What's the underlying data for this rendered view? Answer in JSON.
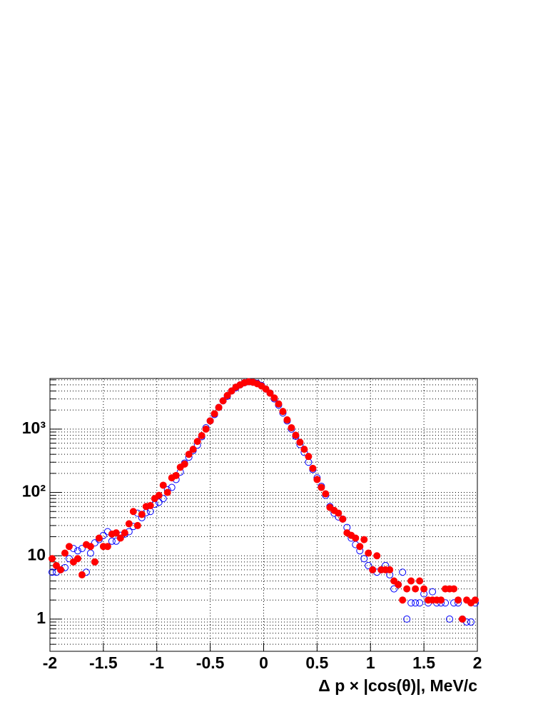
{
  "chart_data": {
    "type": "scatter",
    "x_label": "Δ p × |cos(θ)|, MeV/c",
    "xlim": [
      -2,
      2
    ],
    "xticks": [
      -2,
      -1.5,
      -1,
      -0.5,
      0,
      0.5,
      1,
      1.5,
      2
    ],
    "ylim": [
      0.31,
      6300
    ],
    "log_y": true,
    "yticks": [
      1,
      10,
      {
        "value": 100,
        "label": "10²"
      },
      {
        "value": 1000,
        "label": "10³"
      }
    ],
    "y_minor_ticks": [
      0.4,
      0.5,
      0.6,
      0.7,
      0.8,
      0.9,
      2,
      3,
      4,
      5,
      6,
      7,
      8,
      9,
      20,
      30,
      40,
      50,
      60,
      70,
      80,
      90,
      200,
      300,
      400,
      500,
      600,
      700,
      800,
      900,
      2000,
      3000,
      4000,
      5000,
      6000
    ],
    "grid": true,
    "x": [
      -1.98,
      -1.94,
      -1.9,
      -1.86,
      -1.82,
      -1.78,
      -1.74,
      -1.7,
      -1.66,
      -1.62,
      -1.58,
      -1.54,
      -1.5,
      -1.46,
      -1.42,
      -1.38,
      -1.34,
      -1.3,
      -1.26,
      -1.22,
      -1.18,
      -1.14,
      -1.1,
      -1.06,
      -1.02,
      -0.98,
      -0.94,
      -0.9,
      -0.86,
      -0.82,
      -0.78,
      -0.74,
      -0.7,
      -0.66,
      -0.62,
      -0.58,
      -0.54,
      -0.5,
      -0.46,
      -0.42,
      -0.38,
      -0.34,
      -0.3,
      -0.26,
      -0.22,
      -0.18,
      -0.14,
      -0.1,
      -0.06,
      -0.02,
      0.02,
      0.06,
      0.1,
      0.14,
      0.18,
      0.22,
      0.26,
      0.3,
      0.34,
      0.38,
      0.42,
      0.46,
      0.5,
      0.54,
      0.58,
      0.62,
      0.66,
      0.7,
      0.74,
      0.78,
      0.82,
      0.86,
      0.9,
      0.94,
      0.98,
      1.02,
      1.06,
      1.1,
      1.14,
      1.18,
      1.22,
      1.26,
      1.3,
      1.34,
      1.38,
      1.42,
      1.46,
      1.5,
      1.54,
      1.58,
      1.62,
      1.66,
      1.7,
      1.74,
      1.78,
      1.82,
      1.86,
      1.9,
      1.94,
      1.98
    ],
    "series": [
      {
        "color": "#0000ff",
        "marker": "open",
        "values": [
          5.5,
          5.5,
          6,
          6.5,
          9,
          13,
          12,
          13,
          5.5,
          11,
          16,
          18,
          21,
          24,
          17,
          17,
          21,
          22,
          24,
          29,
          47,
          40,
          48,
          50,
          65,
          70,
          80,
          110,
          120,
          160,
          210,
          290,
          360,
          460,
          560,
          760,
          1050,
          1350,
          1700,
          2200,
          2800,
          3300,
          4000,
          4500,
          5000,
          5400,
          5600,
          5500,
          5300,
          4900,
          4300,
          3700,
          3000,
          2400,
          1800,
          1350,
          1000,
          770,
          570,
          430,
          300,
          230,
          170,
          125,
          90,
          60,
          47,
          41,
          38,
          28,
          19,
          15,
          12,
          9,
          7,
          6,
          5.5,
          6,
          7,
          5,
          3,
          3.5,
          5.5,
          1,
          1.8,
          1.8,
          1.8,
          2.5,
          1.8,
          2.7,
          1.8,
          1.8,
          1.8,
          1,
          1.8,
          1.8,
          1,
          0.9,
          0.9,
          1.8
        ]
      },
      {
        "color": "#ff0000",
        "marker": "filled",
        "values": [
          9,
          7,
          6,
          11,
          14,
          8,
          9,
          5,
          15,
          14,
          8,
          19,
          14,
          14,
          22,
          23,
          19,
          23,
          32,
          50,
          30,
          45,
          60,
          62,
          80,
          90,
          130,
          100,
          170,
          185,
          250,
          280,
          400,
          480,
          640,
          790,
          1000,
          1350,
          1750,
          2200,
          2800,
          3400,
          4000,
          4600,
          5000,
          5400,
          5600,
          5500,
          5200,
          4800,
          4300,
          3700,
          3100,
          2500,
          1900,
          1400,
          1050,
          800,
          620,
          480,
          370,
          240,
          160,
          120,
          95,
          58,
          52,
          47,
          38,
          23,
          21,
          19,
          14,
          18,
          11,
          6,
          10,
          6,
          6,
          6,
          4,
          3.5,
          2,
          3,
          4,
          3,
          4,
          3,
          2,
          2,
          2,
          2,
          3,
          3,
          3,
          2,
          1,
          2,
          1.8,
          2
        ]
      }
    ]
  }
}
